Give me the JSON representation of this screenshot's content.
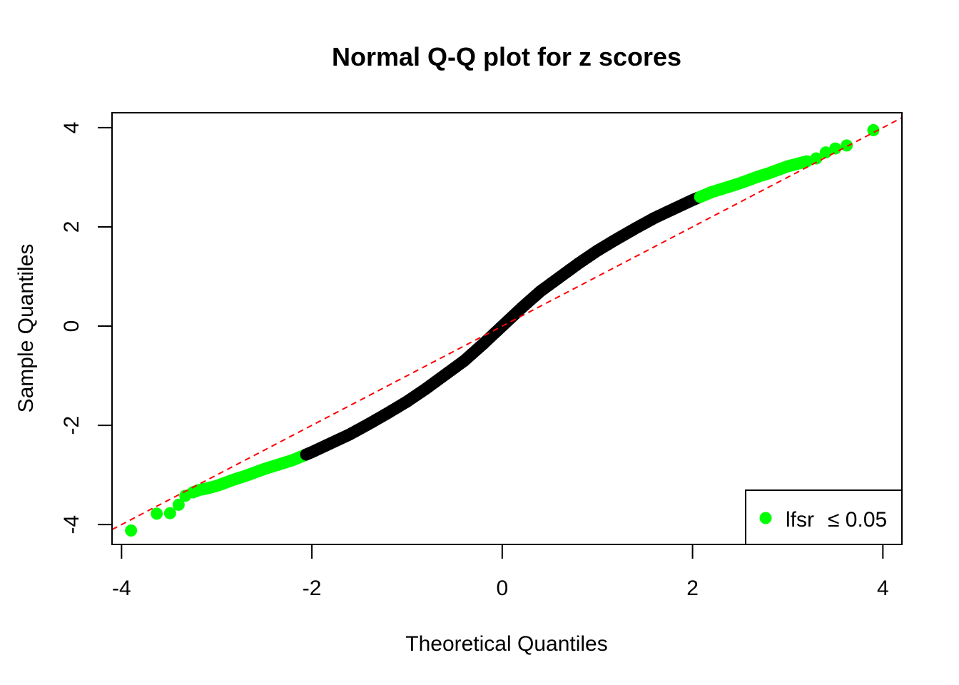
{
  "chart_data": {
    "type": "scatter",
    "title": "Normal Q-Q plot for z scores",
    "xlabel": "Theoretical Quantiles",
    "ylabel": "Sample Quantiles",
    "xlim": [
      -4.1,
      4.2
    ],
    "ylim": [
      -4.4,
      4.3
    ],
    "xticks": [
      -4,
      -2,
      0,
      2,
      4
    ],
    "yticks": [
      -4,
      -2,
      0,
      2,
      4
    ],
    "xtick_labels": [
      "-4",
      "-2",
      "0",
      "2",
      "4"
    ],
    "ytick_labels": [
      "-4",
      "-2",
      "0",
      "2",
      "4"
    ],
    "grid": false,
    "legend": {
      "position": "bottom-right",
      "label_left": "lfsr",
      "label_right": "≤ 0.05"
    },
    "reference_line": {
      "intercept": 0,
      "slope": 1,
      "color": "#ff0000",
      "style": "dashed"
    },
    "colors": {
      "normal": "#000000",
      "significant": "#00ff00",
      "reference": "#ff0000"
    },
    "threshold_abs_z": 2.6,
    "series": [
      {
        "x": [
          -3.9,
          -3.63,
          -3.49,
          -3.4,
          -3.33,
          -3.25,
          -3.18,
          -3.1,
          -3.0,
          -2.9,
          -2.8,
          -2.7,
          -2.6,
          -2.5,
          -2.4,
          -2.3,
          -2.2,
          -2.1,
          -2.0,
          -1.8,
          -1.6,
          -1.4,
          -1.2,
          -1.0,
          -0.8,
          -0.6,
          -0.4,
          -0.2,
          0.0,
          0.2,
          0.4,
          0.6,
          0.8,
          1.0,
          1.2,
          1.4,
          1.6,
          1.8,
          2.0,
          2.1,
          2.2,
          2.3,
          2.4,
          2.5,
          2.6,
          2.7,
          2.8,
          2.9,
          3.0,
          3.1,
          3.2,
          3.3,
          3.4,
          3.5,
          3.62,
          3.9
        ],
        "y": [
          -4.12,
          -3.78,
          -3.77,
          -3.6,
          -3.42,
          -3.35,
          -3.3,
          -3.27,
          -3.22,
          -3.15,
          -3.08,
          -3.02,
          -2.95,
          -2.88,
          -2.82,
          -2.76,
          -2.7,
          -2.62,
          -2.54,
          -2.36,
          -2.18,
          -1.97,
          -1.75,
          -1.52,
          -1.26,
          -0.98,
          -0.7,
          -0.36,
          0.0,
          0.36,
          0.7,
          0.98,
          1.26,
          1.52,
          1.75,
          1.97,
          2.18,
          2.36,
          2.54,
          2.62,
          2.7,
          2.76,
          2.82,
          2.88,
          2.95,
          3.02,
          3.08,
          3.15,
          3.22,
          3.27,
          3.32,
          3.38,
          3.5,
          3.58,
          3.64,
          3.95
        ]
      }
    ]
  }
}
